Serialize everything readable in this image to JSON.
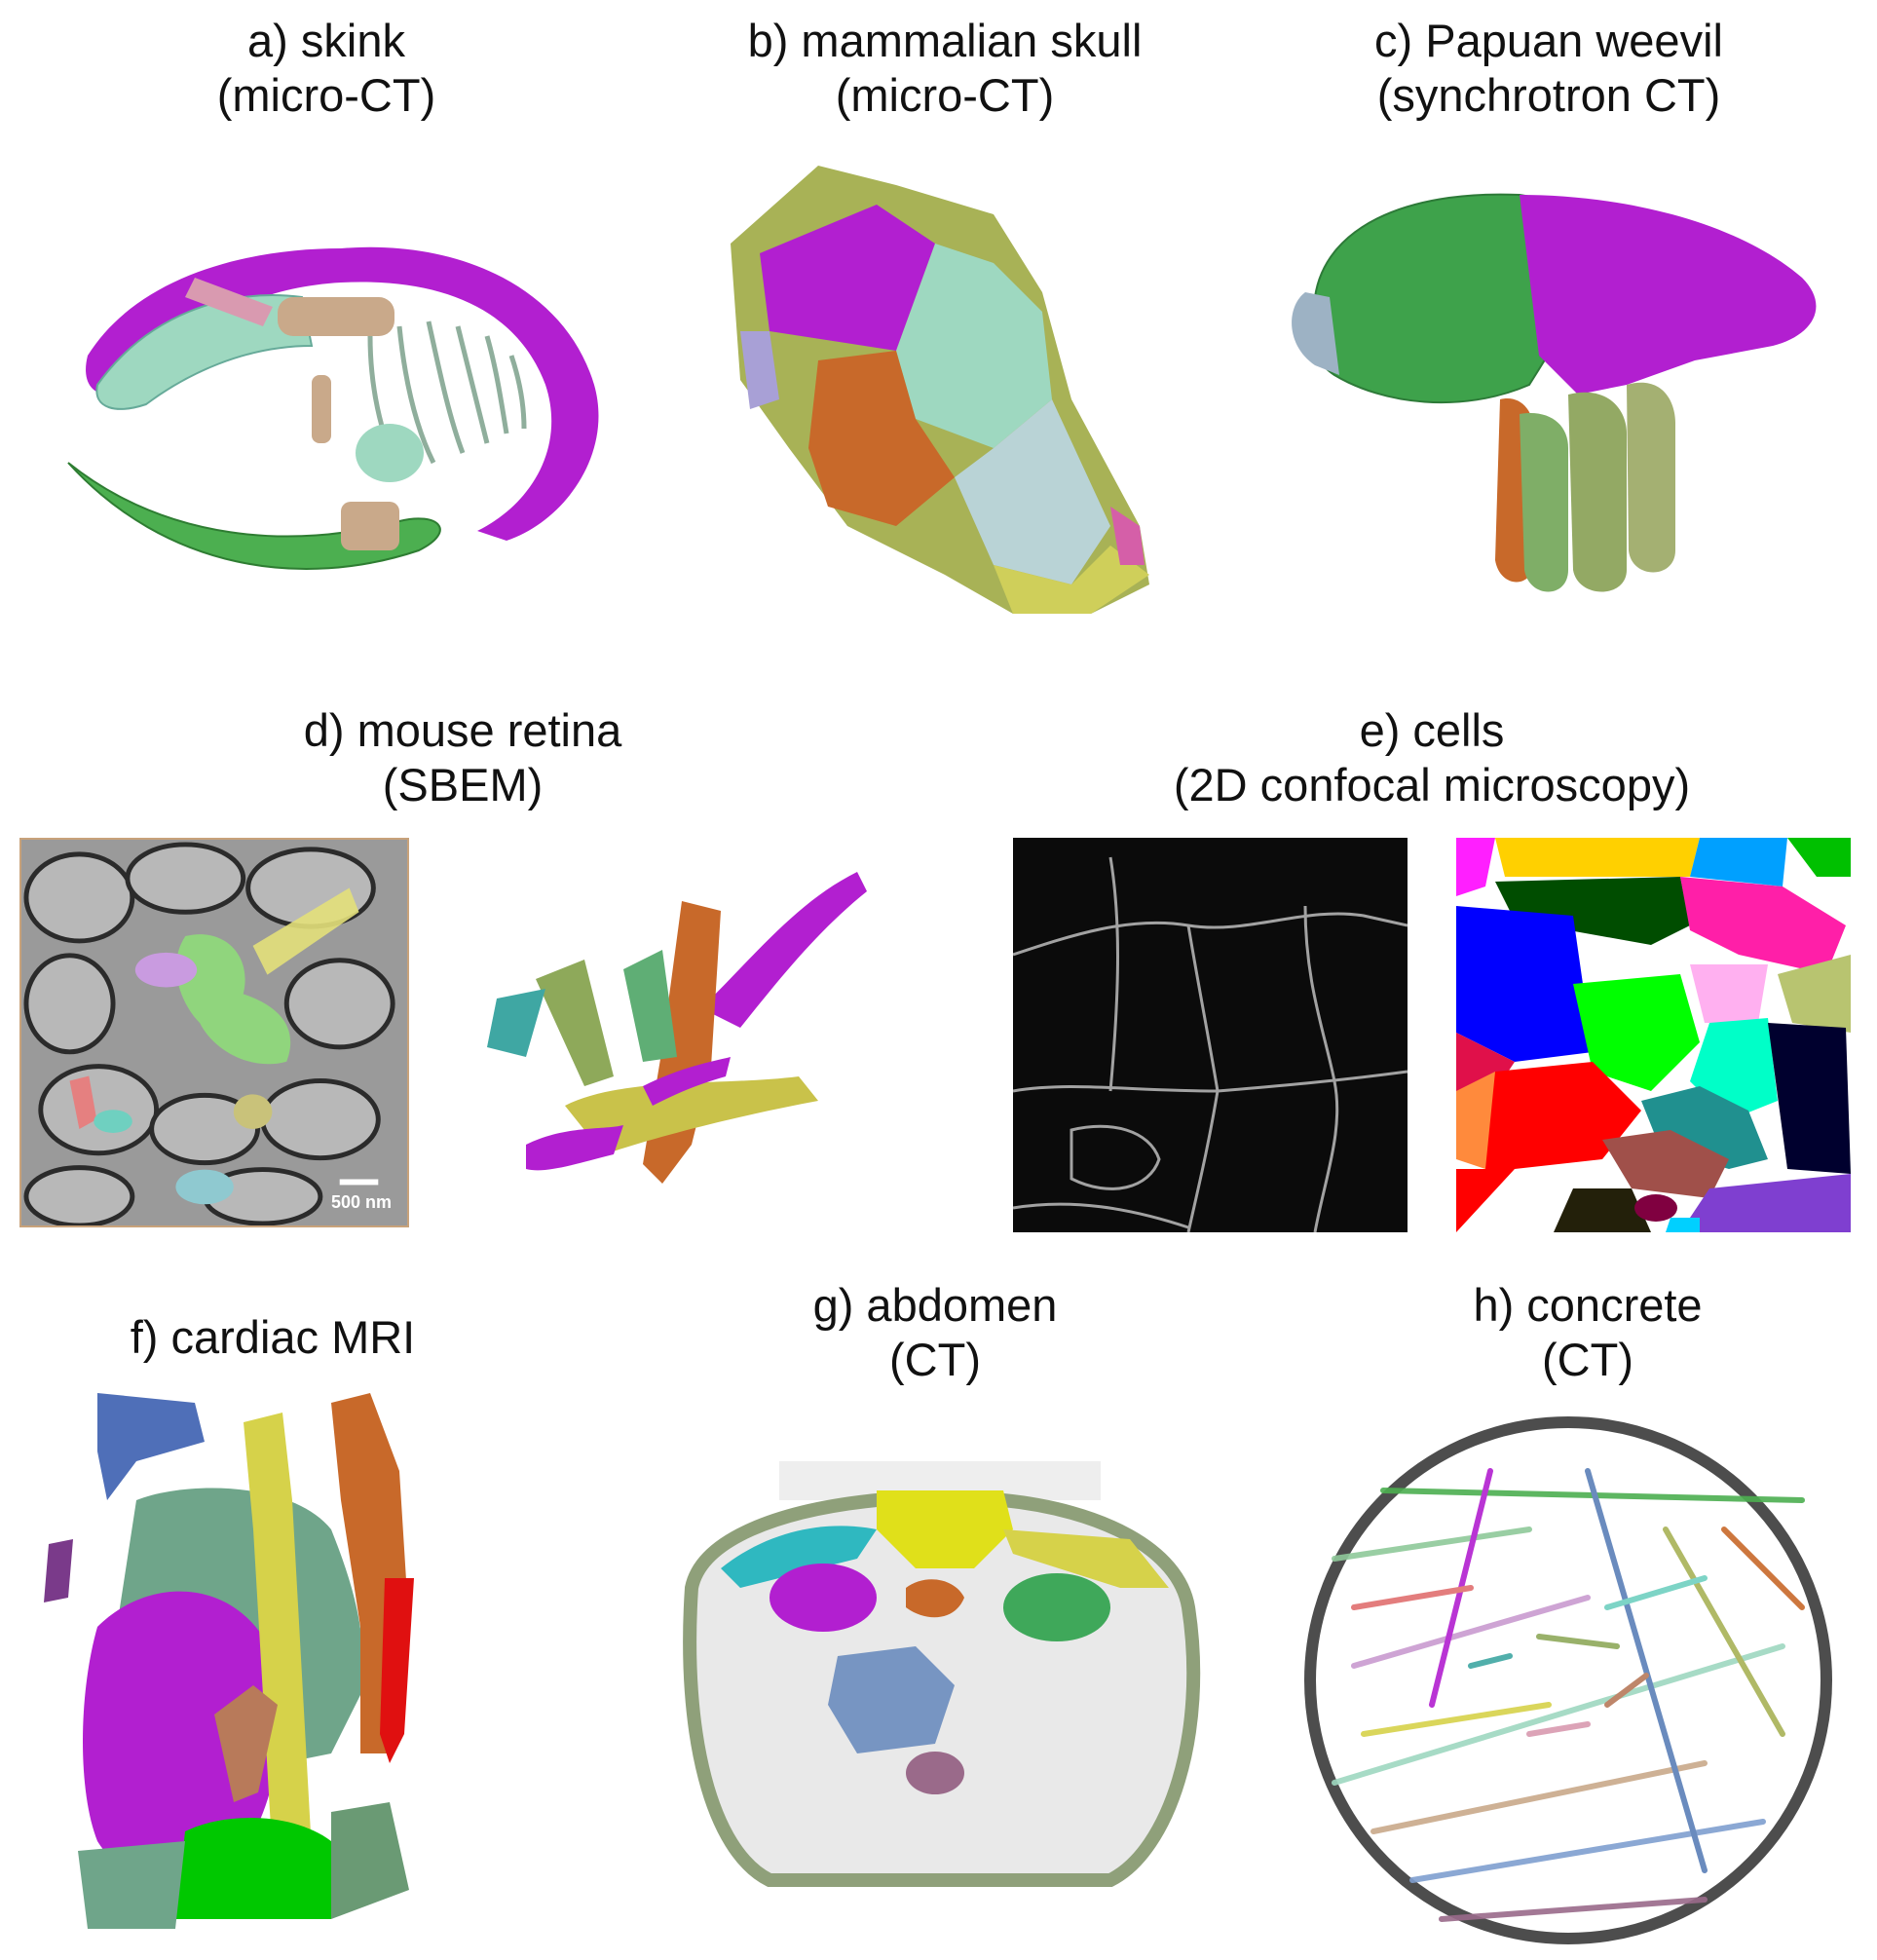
{
  "panels": [
    {
      "id": "a",
      "title": "a) skink",
      "subtitle": "(micro-CT)"
    },
    {
      "id": "b",
      "title": "b) mammalian skull",
      "subtitle": "(micro-CT)"
    },
    {
      "id": "c",
      "title": "c) Papuan weevil",
      "subtitle": "(synchrotron CT)"
    },
    {
      "id": "d",
      "title": "d) mouse retina",
      "subtitle": "(SBEM)",
      "scalebar": "500 nm"
    },
    {
      "id": "e",
      "title": "e) cells",
      "subtitle": "(2D confocal microscopy)"
    },
    {
      "id": "f",
      "title": "f) cardiac MRI",
      "subtitle": ""
    },
    {
      "id": "g",
      "title": "g) abdomen",
      "subtitle": "(CT)"
    },
    {
      "id": "h",
      "title": "h) concrete",
      "subtitle": "(CT)"
    }
  ],
  "colors": {
    "magenta": "#b21fd0",
    "green": "#4caf50",
    "seafoam": "#9ed8c0",
    "olive": "#a8b256",
    "orange": "#c8692a",
    "tan": "#c9a98a",
    "red": "#e01010",
    "yellow": "#d6d24a",
    "purple": "#8a2be2"
  }
}
